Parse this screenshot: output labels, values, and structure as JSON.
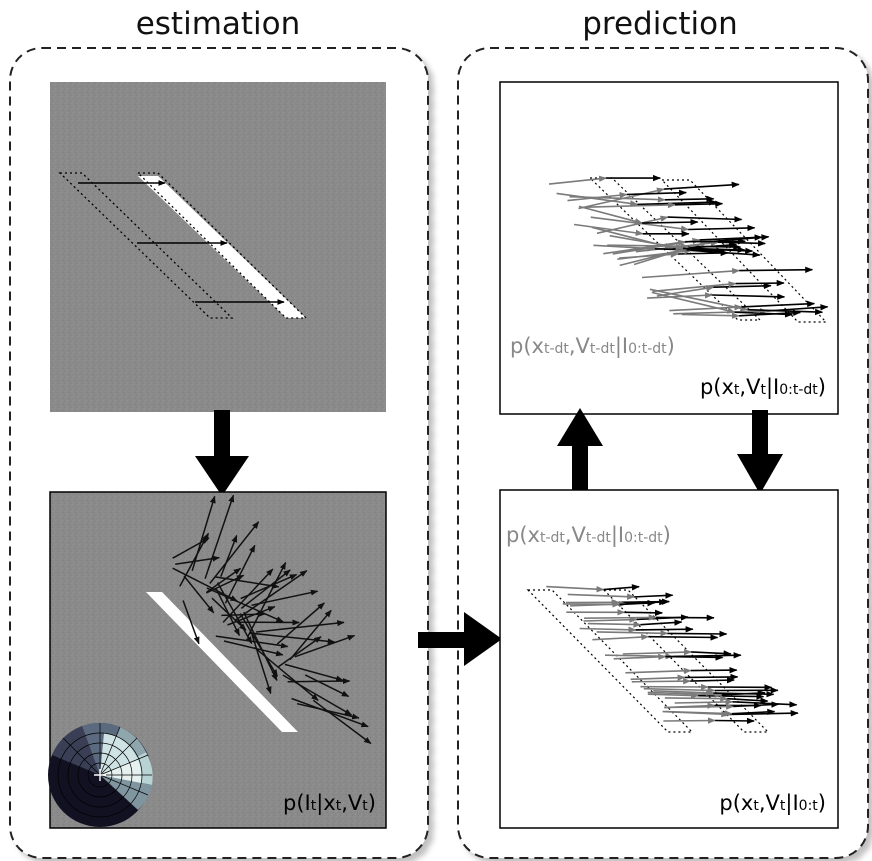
{
  "sections": {
    "estimation": {
      "title": "estimation"
    },
    "prediction": {
      "title": "prediction"
    }
  },
  "labels": {
    "likelihood": {
      "p": "p(I",
      "s1": "t",
      "m1": "|x",
      "s2": "t",
      "m2": ",V",
      "s3": "t",
      "end": ")"
    },
    "predicted_top_prior": {
      "p": "p(x",
      "s1": "t-dt",
      "m1": ",V",
      "s2": "t-dt",
      "m2": "|I",
      "s3": "0:t-dt",
      "end": ")"
    },
    "predicted_top": {
      "p": "p(x",
      "s1": "t",
      "m1": ",V",
      "s2": "t",
      "m2": "|I",
      "s3": "0:t-dt",
      "end": ")"
    },
    "posterior_prior": {
      "p": "p(x",
      "s1": "t-dt",
      "m1": ",V",
      "s2": "t-dt",
      "m2": "|I",
      "s3": "0:t-dt",
      "end": ")"
    },
    "posterior": {
      "p": "p(x",
      "s1": "t",
      "m1": ",V",
      "s2": "t",
      "m2": "|I",
      "s3": "0:t",
      "end": ")"
    }
  },
  "colors": {
    "noise_panel": "#8a8a8a",
    "prior_arrows": "#7a7a7a",
    "current_arrows": "#000000",
    "bar": "#ffffff",
    "dial_dark": "#111122",
    "dial_light": "#b9d3d5"
  }
}
